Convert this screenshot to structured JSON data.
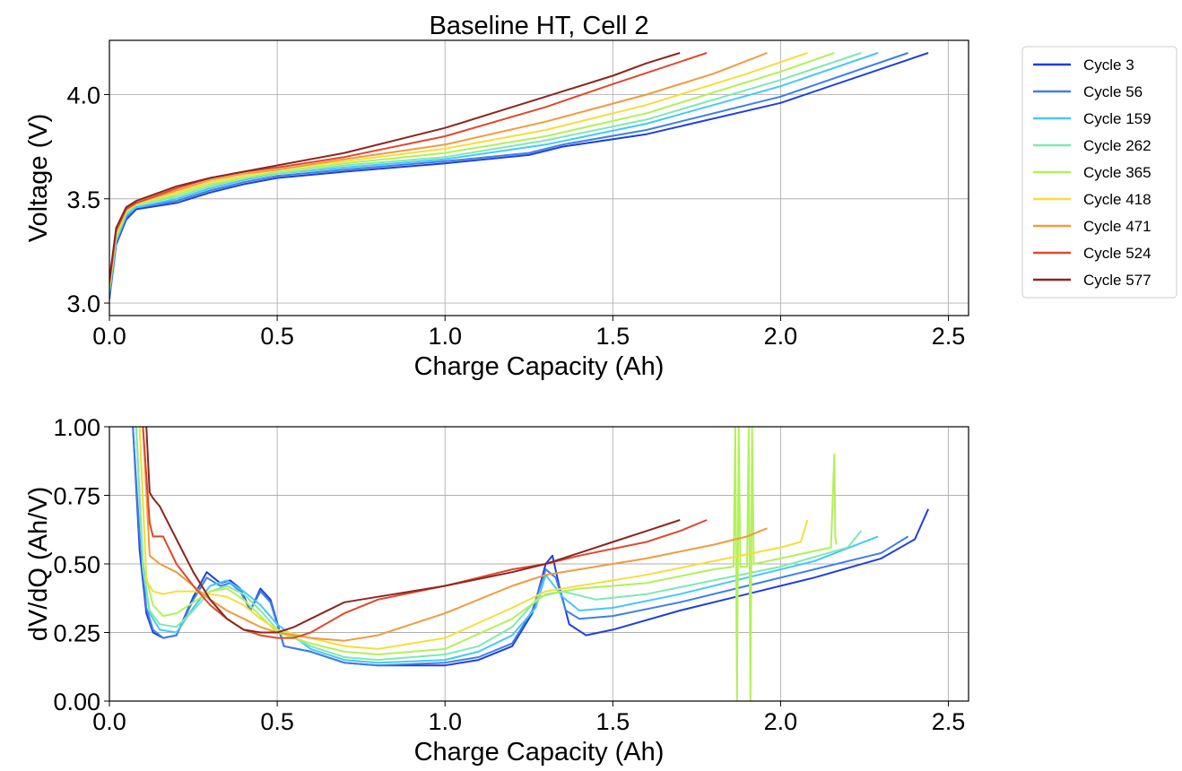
{
  "figure": {
    "title": "Baseline HT, Cell 2"
  },
  "series_styles": [
    {
      "name": "Cycle 3",
      "color": "#1f3fe0"
    },
    {
      "name": "Cycle 56",
      "color": "#3f7fe6"
    },
    {
      "name": "Cycle 159",
      "color": "#46c8f5"
    },
    {
      "name": "Cycle 262",
      "color": "#7ee8b2"
    },
    {
      "name": "Cycle 365",
      "color": "#b2f05a"
    },
    {
      "name": "Cycle 418",
      "color": "#f5de3c"
    },
    {
      "name": "Cycle 471",
      "color": "#f29a3e"
    },
    {
      "name": "Cycle 524",
      "color": "#e0482c"
    },
    {
      "name": "Cycle 577",
      "color": "#8b2620"
    }
  ],
  "chart_data": [
    {
      "type": "line",
      "title": "Baseline HT, Cell 2",
      "xlabel": "Charge Capacity (Ah)",
      "ylabel": "Voltage (V)",
      "xlim": [
        0.0,
        2.56
      ],
      "ylim": [
        2.94,
        4.26
      ],
      "xticks": [
        0.0,
        0.5,
        1.0,
        1.5,
        2.0,
        2.5
      ],
      "xtick_labels": [
        "0.0",
        "0.5",
        "1.0",
        "1.5",
        "2.0",
        "2.5"
      ],
      "yticks": [
        3.0,
        3.5,
        4.0
      ],
      "ytick_labels": [
        "3.0",
        "3.5",
        "4.0"
      ],
      "grid": true,
      "legend": "outside-right",
      "series": [
        {
          "name": "Cycle 3",
          "qmax": 2.44
        },
        {
          "name": "Cycle 56",
          "qmax": 2.38
        },
        {
          "name": "Cycle 159",
          "qmax": 2.29
        },
        {
          "name": "Cycle 262",
          "qmax": 2.24
        },
        {
          "name": "Cycle 365",
          "qmax": 2.16
        },
        {
          "name": "Cycle 418",
          "qmax": 2.08
        },
        {
          "name": "Cycle 471",
          "qmax": 1.96
        },
        {
          "name": "Cycle 524",
          "qmax": 1.78
        },
        {
          "name": "Cycle 577",
          "qmax": 1.7
        }
      ],
      "curves": {
        "Cycle 3": {
          "x": [
            0.0,
            0.02,
            0.05,
            0.08,
            0.2,
            0.3,
            0.4,
            0.5,
            0.7,
            1.0,
            1.25,
            1.35,
            1.6,
            2.0,
            2.44
          ],
          "y": [
            3.02,
            3.28,
            3.4,
            3.45,
            3.48,
            3.53,
            3.57,
            3.6,
            3.63,
            3.67,
            3.71,
            3.75,
            3.81,
            3.96,
            4.2
          ]
        },
        "Cycle 56": {
          "x": [
            0.0,
            0.02,
            0.05,
            0.08,
            0.2,
            0.3,
            0.4,
            0.5,
            0.7,
            1.0,
            1.25,
            1.35,
            1.6,
            2.0,
            2.38
          ],
          "y": [
            3.03,
            3.29,
            3.41,
            3.46,
            3.49,
            3.54,
            3.58,
            3.61,
            3.64,
            3.68,
            3.72,
            3.76,
            3.83,
            3.99,
            4.2
          ]
        },
        "Cycle 159": {
          "x": [
            0.0,
            0.02,
            0.05,
            0.08,
            0.2,
            0.3,
            0.4,
            0.5,
            0.7,
            1.0,
            1.3,
            1.6,
            2.0,
            2.29
          ],
          "y": [
            3.05,
            3.3,
            3.42,
            3.46,
            3.5,
            3.55,
            3.59,
            3.62,
            3.65,
            3.69,
            3.76,
            3.86,
            4.04,
            4.2
          ]
        },
        "Cycle 262": {
          "x": [
            0.0,
            0.02,
            0.05,
            0.08,
            0.2,
            0.3,
            0.4,
            0.5,
            0.7,
            1.0,
            1.3,
            1.6,
            2.0,
            2.24
          ],
          "y": [
            3.06,
            3.31,
            3.43,
            3.47,
            3.51,
            3.56,
            3.6,
            3.62,
            3.66,
            3.7,
            3.78,
            3.88,
            4.07,
            4.2
          ]
        },
        "Cycle 365": {
          "x": [
            0.0,
            0.02,
            0.05,
            0.08,
            0.2,
            0.3,
            0.4,
            0.5,
            0.7,
            1.0,
            1.3,
            1.6,
            2.0,
            2.16
          ],
          "y": [
            3.07,
            3.32,
            3.44,
            3.47,
            3.52,
            3.57,
            3.6,
            3.63,
            3.67,
            3.72,
            3.8,
            3.91,
            4.11,
            4.2
          ]
        },
        "Cycle 418": {
          "x": [
            0.0,
            0.02,
            0.05,
            0.08,
            0.2,
            0.3,
            0.4,
            0.5,
            0.7,
            1.0,
            1.3,
            1.6,
            1.9,
            2.08
          ],
          "y": [
            3.08,
            3.33,
            3.44,
            3.48,
            3.53,
            3.58,
            3.61,
            3.64,
            3.68,
            3.74,
            3.83,
            3.95,
            4.1,
            4.2
          ]
        },
        "Cycle 471": {
          "x": [
            0.0,
            0.02,
            0.05,
            0.08,
            0.2,
            0.3,
            0.4,
            0.5,
            0.7,
            1.0,
            1.3,
            1.6,
            1.8,
            1.96
          ],
          "y": [
            3.09,
            3.34,
            3.45,
            3.48,
            3.54,
            3.59,
            3.62,
            3.64,
            3.69,
            3.76,
            3.87,
            4.0,
            4.1,
            4.2
          ]
        },
        "Cycle 524": {
          "x": [
            0.0,
            0.02,
            0.05,
            0.08,
            0.2,
            0.3,
            0.4,
            0.5,
            0.7,
            1.0,
            1.3,
            1.5,
            1.65,
            1.78
          ],
          "y": [
            3.1,
            3.35,
            3.45,
            3.48,
            3.55,
            3.6,
            3.63,
            3.65,
            3.7,
            3.8,
            3.94,
            4.05,
            4.13,
            4.2
          ]
        },
        "Cycle 577": {
          "x": [
            0.0,
            0.02,
            0.05,
            0.08,
            0.2,
            0.3,
            0.4,
            0.5,
            0.7,
            1.0,
            1.3,
            1.5,
            1.6,
            1.7
          ],
          "y": [
            3.11,
            3.36,
            3.46,
            3.49,
            3.56,
            3.6,
            3.63,
            3.66,
            3.72,
            3.84,
            3.99,
            4.09,
            4.15,
            4.2
          ]
        }
      }
    },
    {
      "type": "line",
      "xlabel": "Charge Capacity (Ah)",
      "ylabel": "dV/dQ (Ah/V)",
      "xlim": [
        0.0,
        2.56
      ],
      "ylim": [
        0.0,
        1.0
      ],
      "xticks": [
        0.0,
        0.5,
        1.0,
        1.5,
        2.0,
        2.5
      ],
      "xtick_labels": [
        "0.0",
        "0.5",
        "1.0",
        "1.5",
        "2.0",
        "2.5"
      ],
      "yticks": [
        0.0,
        0.25,
        0.5,
        0.75,
        1.0
      ],
      "ytick_labels": [
        "0.00",
        "0.25",
        "0.50",
        "0.75",
        "1.00"
      ],
      "grid": true,
      "curves": {
        "Cycle 3": {
          "x": [
            0.07,
            0.09,
            0.11,
            0.13,
            0.16,
            0.2,
            0.25,
            0.29,
            0.33,
            0.36,
            0.39,
            0.42,
            0.45,
            0.48,
            0.52,
            0.6,
            0.7,
            0.8,
            1.0,
            1.1,
            1.2,
            1.26,
            1.3,
            1.32,
            1.34,
            1.37,
            1.42,
            1.5,
            1.7,
            1.9,
            2.1,
            2.3,
            2.4,
            2.44
          ],
          "y": [
            1.0,
            0.55,
            0.32,
            0.25,
            0.23,
            0.24,
            0.38,
            0.47,
            0.43,
            0.44,
            0.41,
            0.33,
            0.41,
            0.37,
            0.2,
            0.18,
            0.14,
            0.13,
            0.13,
            0.15,
            0.2,
            0.32,
            0.5,
            0.53,
            0.42,
            0.28,
            0.24,
            0.26,
            0.33,
            0.39,
            0.45,
            0.52,
            0.59,
            0.7
          ]
        },
        "Cycle 56": {
          "x": [
            0.07,
            0.09,
            0.11,
            0.13,
            0.16,
            0.2,
            0.25,
            0.29,
            0.33,
            0.36,
            0.39,
            0.42,
            0.45,
            0.48,
            0.52,
            0.6,
            0.7,
            0.8,
            1.0,
            1.1,
            1.2,
            1.26,
            1.3,
            1.33,
            1.36,
            1.4,
            1.5,
            1.7,
            1.9,
            2.1,
            2.3,
            2.38
          ],
          "y": [
            1.0,
            0.6,
            0.34,
            0.26,
            0.23,
            0.24,
            0.37,
            0.45,
            0.42,
            0.43,
            0.4,
            0.33,
            0.4,
            0.36,
            0.2,
            0.18,
            0.14,
            0.13,
            0.14,
            0.16,
            0.21,
            0.33,
            0.48,
            0.45,
            0.33,
            0.3,
            0.31,
            0.36,
            0.42,
            0.48,
            0.54,
            0.6
          ]
        },
        "Cycle 159": {
          "x": [
            0.08,
            0.1,
            0.12,
            0.15,
            0.2,
            0.25,
            0.3,
            0.35,
            0.4,
            0.45,
            0.5,
            0.6,
            0.7,
            0.8,
            1.0,
            1.1,
            1.2,
            1.27,
            1.3,
            1.35,
            1.4,
            1.5,
            1.7,
            1.9,
            2.1,
            2.29
          ],
          "y": [
            1.0,
            0.5,
            0.32,
            0.26,
            0.25,
            0.34,
            0.42,
            0.44,
            0.4,
            0.35,
            0.28,
            0.19,
            0.15,
            0.14,
            0.15,
            0.18,
            0.24,
            0.34,
            0.46,
            0.38,
            0.33,
            0.34,
            0.39,
            0.45,
            0.51,
            0.6
          ]
        },
        "Cycle 262": {
          "x": [
            0.08,
            0.1,
            0.12,
            0.15,
            0.2,
            0.25,
            0.3,
            0.35,
            0.4,
            0.45,
            0.5,
            0.6,
            0.7,
            0.8,
            1.0,
            1.1,
            1.2,
            1.28,
            1.35,
            1.45,
            1.6,
            1.8,
            2.0,
            2.2,
            2.24
          ],
          "y": [
            1.0,
            0.48,
            0.33,
            0.28,
            0.27,
            0.33,
            0.4,
            0.42,
            0.39,
            0.33,
            0.26,
            0.2,
            0.16,
            0.15,
            0.17,
            0.2,
            0.27,
            0.38,
            0.4,
            0.37,
            0.39,
            0.44,
            0.49,
            0.56,
            0.62
          ]
        },
        "Cycle 365": {
          "x": [
            0.09,
            0.11,
            0.13,
            0.16,
            0.2,
            0.25,
            0.3,
            0.35,
            0.4,
            0.45,
            0.5,
            0.6,
            0.7,
            0.8,
            1.0,
            1.2,
            1.3,
            1.4,
            1.6,
            1.8,
            1.86,
            1.865,
            1.87,
            1.875,
            1.88,
            1.9,
            1.905,
            1.91,
            1.915,
            1.92,
            2.0,
            2.15,
            2.16,
            2.163,
            2.166
          ],
          "y": [
            1.0,
            0.45,
            0.35,
            0.31,
            0.32,
            0.36,
            0.4,
            0.41,
            0.37,
            0.31,
            0.25,
            0.21,
            0.18,
            0.17,
            0.19,
            0.3,
            0.39,
            0.41,
            0.43,
            0.48,
            0.49,
            1.0,
            0.0,
            1.0,
            0.49,
            0.49,
            1.0,
            0.0,
            1.0,
            0.5,
            0.52,
            0.56,
            0.9,
            0.6,
            0.57
          ]
        },
        "Cycle 418": {
          "x": [
            0.09,
            0.11,
            0.13,
            0.16,
            0.2,
            0.25,
            0.3,
            0.35,
            0.4,
            0.45,
            0.5,
            0.6,
            0.7,
            0.8,
            1.0,
            1.2,
            1.3,
            1.4,
            1.6,
            1.8,
            2.0,
            2.06,
            2.08
          ],
          "y": [
            1.0,
            0.44,
            0.4,
            0.39,
            0.4,
            0.4,
            0.39,
            0.38,
            0.35,
            0.3,
            0.26,
            0.23,
            0.2,
            0.19,
            0.23,
            0.34,
            0.4,
            0.42,
            0.46,
            0.51,
            0.56,
            0.58,
            0.66
          ]
        },
        "Cycle 471": {
          "x": [
            0.1,
            0.12,
            0.15,
            0.2,
            0.25,
            0.3,
            0.35,
            0.4,
            0.45,
            0.5,
            0.6,
            0.7,
            0.8,
            1.0,
            1.2,
            1.3,
            1.4,
            1.6,
            1.8,
            1.9,
            1.96
          ],
          "y": [
            1.0,
            0.53,
            0.5,
            0.47,
            0.42,
            0.37,
            0.33,
            0.3,
            0.27,
            0.25,
            0.23,
            0.22,
            0.24,
            0.32,
            0.42,
            0.46,
            0.48,
            0.52,
            0.57,
            0.6,
            0.63
          ]
        },
        "Cycle 524": {
          "x": [
            0.1,
            0.12,
            0.13,
            0.16,
            0.2,
            0.25,
            0.3,
            0.35,
            0.4,
            0.45,
            0.5,
            0.55,
            0.6,
            0.7,
            0.8,
            1.0,
            1.2,
            1.3,
            1.4,
            1.6,
            1.7,
            1.78
          ],
          "y": [
            1.0,
            0.65,
            0.6,
            0.6,
            0.5,
            0.42,
            0.35,
            0.3,
            0.26,
            0.24,
            0.23,
            0.23,
            0.25,
            0.32,
            0.37,
            0.42,
            0.48,
            0.5,
            0.53,
            0.58,
            0.62,
            0.66
          ]
        },
        "Cycle 577": {
          "x": [
            0.11,
            0.12,
            0.13,
            0.15,
            0.2,
            0.25,
            0.3,
            0.35,
            0.4,
            0.45,
            0.5,
            0.55,
            0.6,
            0.7,
            0.8,
            1.0,
            1.2,
            1.3,
            1.4,
            1.5,
            1.6,
            1.7
          ],
          "y": [
            1.0,
            0.76,
            0.74,
            0.71,
            0.59,
            0.47,
            0.37,
            0.3,
            0.26,
            0.25,
            0.25,
            0.27,
            0.3,
            0.36,
            0.38,
            0.42,
            0.47,
            0.5,
            0.54,
            0.58,
            0.62,
            0.66
          ]
        }
      }
    }
  ]
}
